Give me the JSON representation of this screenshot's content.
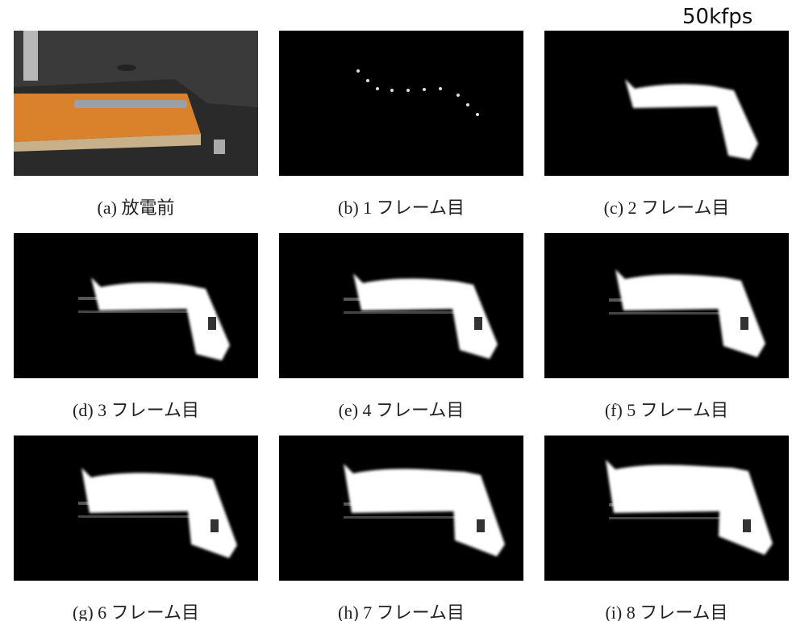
{
  "label": "50kfps",
  "panels": [
    {
      "caption": "(a)  放電前"
    },
    {
      "caption": "(b) 1 フレーム目"
    },
    {
      "caption": "(c) 2 フレーム目"
    },
    {
      "caption": "(d) 3 フレーム目"
    },
    {
      "caption": "(e) 4 フレーム目"
    },
    {
      "caption": "(f) 5 フレーム目"
    },
    {
      "caption": "(g) 6 フレーム目"
    },
    {
      "caption": "(h) 7 フレーム目"
    },
    {
      "caption": "(i) 8 フレーム目"
    }
  ]
}
